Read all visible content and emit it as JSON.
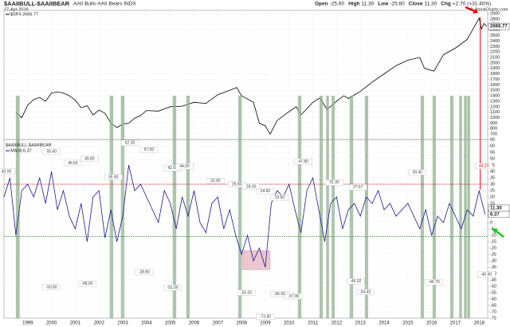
{
  "header": {
    "title": "$AAIIBULL-$AAIIBEAR",
    "subtitle": "AAII Bulls-AAII Bears INDX",
    "date": "27-Apr-2018",
    "quote": [
      {
        "label": "Open",
        "value": "-25.60"
      },
      {
        "label": "High",
        "value": "11.30"
      },
      {
        "label": "Low",
        "value": "-25.60"
      },
      {
        "label": "Close",
        "value": "11.30"
      },
      {
        "label": "Chg",
        "value": "+2.70 (+31.40%)"
      }
    ],
    "copyright": "© StockCharts.com"
  },
  "chart_data": [
    {
      "type": "line",
      "xlim": [
        1998.0,
        2018.36
      ],
      "ylim": [
        600,
        2960
      ],
      "yticks": [
        700,
        800,
        900,
        1000,
        1100,
        1200,
        1300,
        1400,
        1500,
        1600,
        1700,
        1800,
        1900,
        2000,
        2100,
        2200,
        2300,
        2400,
        2500,
        2600,
        2700,
        2800,
        2900
      ],
      "grid": true,
      "series": [
        {
          "name": "$SPX",
          "color": "#000000",
          "x": [
            1998.5,
            1998.75,
            1999,
            1999.25,
            1999.5,
            1999.75,
            2000,
            2000.25,
            2000.5,
            2000.75,
            2001,
            2001.25,
            2001.5,
            2001.75,
            2002,
            2002.25,
            2002.5,
            2002.75,
            2003,
            2003.25,
            2003.5,
            2003.75,
            2004,
            2004.5,
            2005,
            2005.5,
            2006,
            2006.5,
            2007,
            2007.5,
            2007.8,
            2008,
            2008.5,
            2008.75,
            2009,
            2009.2,
            2009.5,
            2010,
            2010.3,
            2010.5,
            2011,
            2011.3,
            2011.6,
            2012,
            2012.3,
            2012.5,
            2013,
            2013.5,
            2014,
            2014.5,
            2015,
            2015.5,
            2015.7,
            2016.1,
            2016.5,
            2017,
            2017.5,
            2018,
            2018.1,
            2018.2,
            2018.32
          ],
          "values": [
            1100,
            1000,
            1230,
            1330,
            1370,
            1300,
            1450,
            1470,
            1450,
            1400,
            1320,
            1180,
            1220,
            1050,
            1140,
            1080,
            900,
            820,
            880,
            900,
            990,
            1040,
            1130,
            1120,
            1200,
            1210,
            1280,
            1260,
            1420,
            1500,
            1550,
            1400,
            1280,
            900,
            850,
            700,
            950,
            1110,
            1200,
            1050,
            1280,
            1360,
            1150,
            1300,
            1400,
            1350,
            1480,
            1650,
            1800,
            1950,
            2050,
            2100,
            1900,
            1850,
            2150,
            2270,
            2430,
            2820,
            2620,
            2720,
            2666.77
          ]
        }
      ],
      "marker_line": {
        "x": 2018.05,
        "color": "#e00000"
      }
    },
    {
      "type": "line",
      "title": "$AAIIBULL-$AAIIBEAR",
      "xlim": [
        1998.0,
        2018.36
      ],
      "ylim": [
        -75,
        65
      ],
      "yticks": [
        65,
        60,
        55,
        50,
        45,
        40,
        35,
        30,
        25,
        20,
        15,
        10,
        5,
        0,
        -5,
        -10,
        -15,
        -20,
        -25,
        -30,
        -35,
        -40,
        -45,
        -50,
        -55,
        -60,
        -65,
        -70,
        -75
      ],
      "xticks": [
        1999,
        2000,
        2001,
        2002,
        2003,
        2004,
        2005,
        2006,
        2007,
        2008,
        2009,
        2010,
        2011,
        2012,
        2013,
        2014,
        2015,
        2016,
        2017,
        2018
      ],
      "grid": true,
      "series": [
        {
          "name": "MA(4)",
          "color": "#1a1a8c",
          "x": [
            1998,
            1998.25,
            1998.5,
            1998.75,
            1999,
            1999.25,
            1999.5,
            1999.75,
            2000,
            2000.25,
            2000.5,
            2000.75,
            2001,
            2001.25,
            2001.5,
            2001.75,
            2002,
            2002.25,
            2002.5,
            2002.75,
            2003,
            2003.25,
            2003.5,
            2003.75,
            2004,
            2004.25,
            2004.5,
            2004.75,
            2005,
            2005.25,
            2005.5,
            2005.75,
            2006,
            2006.25,
            2006.5,
            2006.75,
            2007,
            2007.25,
            2007.5,
            2007.75,
            2008,
            2008.25,
            2008.5,
            2008.75,
            2009,
            2009.25,
            2009.5,
            2009.75,
            2010,
            2010.25,
            2010.5,
            2010.75,
            2011,
            2011.25,
            2011.5,
            2011.75,
            2012,
            2012.25,
            2012.5,
            2012.75,
            2013,
            2013.25,
            2013.5,
            2013.75,
            2014,
            2014.25,
            2014.5,
            2014.75,
            2015,
            2015.25,
            2015.5,
            2015.75,
            2016,
            2016.25,
            2016.5,
            2016.75,
            2017,
            2017.25,
            2017.5,
            2017.75,
            2018,
            2018.25
          ],
          "values": [
            20,
            35,
            -10,
            25,
            30,
            20,
            35,
            15,
            40,
            10,
            25,
            5,
            -5,
            15,
            -15,
            20,
            25,
            -12,
            10,
            -15,
            5,
            45,
            25,
            30,
            20,
            10,
            0,
            25,
            15,
            -5,
            20,
            5,
            25,
            0,
            -8,
            15,
            20,
            -5,
            10,
            -10,
            -25,
            -10,
            -30,
            -20,
            -35,
            15,
            25,
            20,
            30,
            10,
            -8,
            25,
            35,
            10,
            -15,
            15,
            20,
            -5,
            10,
            15,
            5,
            20,
            15,
            25,
            10,
            15,
            5,
            10,
            15,
            5,
            -5,
            10,
            -10,
            5,
            0,
            15,
            5,
            -5,
            10,
            5,
            25,
            6.37
          ]
        }
      ],
      "ref_lines": [
        {
          "value": 30,
          "color": "#cc0000"
        },
        {
          "value": -11,
          "color": "#1a8a1a"
        }
      ],
      "highlights": [
        [
          1998.5,
          1998.66
        ],
        [
          2002.45,
          2002.6
        ],
        [
          2002.92,
          2003.07
        ],
        [
          2005.1,
          2005.25
        ],
        [
          2005.67,
          2005.82
        ],
        [
          2007.86,
          2008.01
        ],
        [
          2010.37,
          2010.52
        ],
        [
          2011.28,
          2011.42
        ],
        [
          2011.56,
          2011.68
        ],
        [
          2011.79,
          2011.92
        ],
        [
          2012.55,
          2012.7
        ],
        [
          2013.19,
          2013.33
        ],
        [
          2015.54,
          2015.68
        ],
        [
          2016.04,
          2016.18
        ],
        [
          2016.78,
          2016.92
        ],
        [
          2017.16,
          2017.28
        ],
        [
          2017.36,
          2017.48
        ],
        [
          2017.5,
          2017.62
        ]
      ],
      "highlight_box": {
        "x": [
          2008.0,
          2009.2
        ],
        "y": [
          -22,
          -37
        ]
      },
      "annotations": [
        {
          "x": 1998.1,
          "value": 40,
          "label": "40.00"
        },
        {
          "x": 2000.0,
          "value": 55.4,
          "label": "55.40"
        },
        {
          "x": 2000.9,
          "value": 46.6,
          "label": "46.60"
        },
        {
          "x": 2001.6,
          "value": 49.8,
          "label": "49.80"
        },
        {
          "x": 2002.6,
          "value": 35.6,
          "label": "35.60"
        },
        {
          "x": 2003.3,
          "value": 62.3,
          "label": "62.30"
        },
        {
          "x": 2004.1,
          "value": 57,
          "label": "57.00"
        },
        {
          "x": 2005.1,
          "value": 42.6,
          "label": "42.60"
        },
        {
          "x": 2005.6,
          "value": 44,
          "label": "44.00"
        },
        {
          "x": 2006.9,
          "value": 32.6,
          "label": "32.60"
        },
        {
          "x": 2007.8,
          "value": 29.8,
          "label": "29.80"
        },
        {
          "x": 2008.4,
          "value": 28,
          "label": "28.00"
        },
        {
          "x": 2009.0,
          "value": 24.6,
          "label": "24.60"
        },
        {
          "x": 2009.6,
          "value": 19.6,
          "label": "19.60"
        },
        {
          "x": 2010.6,
          "value": 47.8,
          "label": "47.80"
        },
        {
          "x": 2011.9,
          "value": 31.3,
          "label": "31.30"
        },
        {
          "x": 2012.9,
          "value": 27.67,
          "label": "27.67"
        },
        {
          "x": 2015.4,
          "value": 39.4,
          "label": "39.40"
        },
        {
          "x": 2018.2,
          "value": 44.2,
          "label": "44.20"
        },
        {
          "x": 2000.0,
          "value": -50.8,
          "label": "-50.80"
        },
        {
          "x": 2001.5,
          "value": -48,
          "label": "-48.00"
        },
        {
          "x": 2003.9,
          "value": -38.8,
          "label": "-38.80"
        },
        {
          "x": 2005.1,
          "value": -51,
          "label": "-51.00"
        },
        {
          "x": 2008.2,
          "value": -55,
          "label": "-55.00"
        },
        {
          "x": 2009.0,
          "value": -73.8,
          "label": "-73.80"
        },
        {
          "x": 2009.6,
          "value": -56,
          "label": "-56.00"
        },
        {
          "x": 2010.2,
          "value": -57.8,
          "label": "-57.80"
        },
        {
          "x": 2012.8,
          "value": -46.02,
          "label": "-46.02"
        },
        {
          "x": 2013.2,
          "value": -54.4,
          "label": "-54.40"
        },
        {
          "x": 2016.1,
          "value": -46.7,
          "label": "-46.70"
        },
        {
          "x": 2018.3,
          "value": -40.6,
          "label": "-40.60"
        }
      ]
    }
  ]
}
